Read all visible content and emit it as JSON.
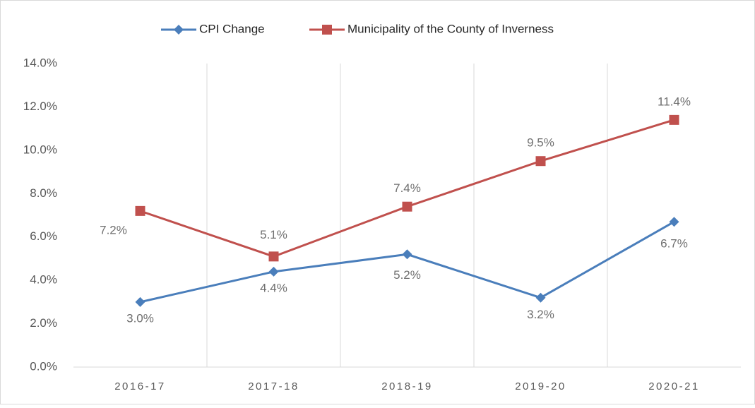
{
  "chart_data": {
    "type": "line",
    "categories": [
      "2016-17",
      "2017-18",
      "2018-19",
      "2019-20",
      "2020-21"
    ],
    "series": [
      {
        "name": "CPI Change",
        "color": "#4a7ebb",
        "marker": "diamond",
        "values": [
          3.0,
          4.4,
          5.2,
          3.2,
          6.7
        ],
        "value_labels": [
          "3.0%",
          "4.4%",
          "5.2%",
          "3.2%",
          "6.7%"
        ]
      },
      {
        "name": "Municipality of the County of Inverness",
        "color": "#c0504d",
        "marker": "square",
        "values": [
          7.2,
          5.1,
          7.4,
          9.5,
          11.4
        ],
        "value_labels": [
          "7.2%",
          "5.1%",
          "7.4%",
          "9.5%",
          "11.4%"
        ]
      }
    ],
    "ylim": [
      0,
      14
    ],
    "yticks": [
      {
        "value": 0,
        "label": "0.0%"
      },
      {
        "value": 2,
        "label": "2.0%"
      },
      {
        "value": 4,
        "label": "4.0%"
      },
      {
        "value": 6,
        "label": "6.0%"
      },
      {
        "value": 8,
        "label": "8.0%"
      },
      {
        "value": 10,
        "label": "10.0%"
      },
      {
        "value": 12,
        "label": "12.0%"
      },
      {
        "value": 14,
        "label": "14.0%"
      }
    ],
    "grid": "x",
    "legend": "top"
  }
}
